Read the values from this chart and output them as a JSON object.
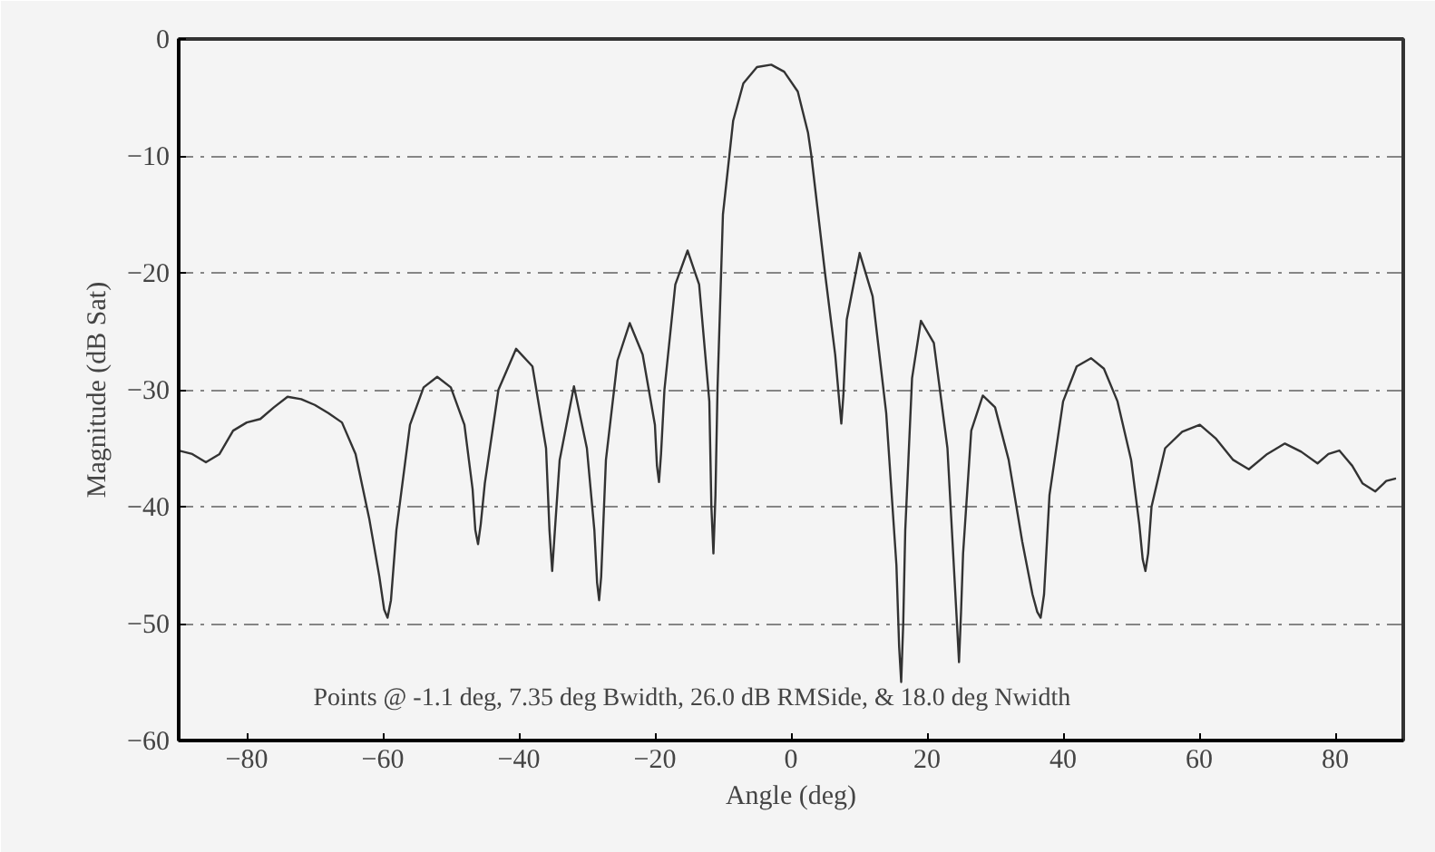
{
  "chart_data": {
    "type": "line",
    "xlabel": "Angle (deg)",
    "ylabel": "Magnitude (dB Sat)",
    "xlim": [
      -90,
      90
    ],
    "ylim": [
      -60,
      0
    ],
    "xticks": [
      -80,
      -60,
      -40,
      -20,
      0,
      20,
      40,
      60,
      80
    ],
    "yticks": [
      0,
      -10,
      -20,
      -30,
      -40,
      -50,
      -60
    ],
    "grid": "y",
    "marker": "none",
    "line_style": "solid",
    "annotations": [
      "Points @ -1.1 deg, 7.35 deg Bwidth, 26.0 dB RMSide, & 18.0 deg Nwidth"
    ],
    "series": [
      {
        "color": "#333333",
        "x": [
          -90,
          -88,
          -86,
          -84,
          -82,
          -80,
          -78,
          -76,
          -74,
          -72,
          -70,
          -68,
          -66,
          -64,
          -62,
          -60.5,
          -59.8,
          -59.3,
          -58.8,
          -58,
          -56,
          -54,
          -52,
          -50,
          -48,
          -46.8,
          -46.4,
          -46,
          -45.6,
          -45,
          -43,
          -40.4,
          -38,
          -36,
          -35.5,
          -35.1,
          -34.7,
          -34,
          -31.9,
          -30,
          -28.9,
          -28.5,
          -28.2,
          -27.9,
          -27.2,
          -25.5,
          -23.7,
          -21.8,
          -20,
          -19.7,
          -19.4,
          -19.1,
          -18.6,
          -17,
          -15.2,
          -13.5,
          -12,
          -11.7,
          -11.4,
          -11.1,
          -10.8,
          -10,
          -8.5,
          -7,
          -5,
          -2.9,
          -1,
          1,
          2.5,
          3,
          4,
          5,
          6.5,
          7.1,
          7.4,
          7.7,
          8.2,
          10.1,
          12,
          14,
          15.5,
          15.9,
          16.2,
          16.5,
          16.8,
          17.8,
          19.1,
          21,
          23,
          24.4,
          24.7,
          25,
          25.3,
          26.5,
          28.2,
          30,
          32,
          34,
          35.5,
          36.2,
          36.7,
          37.2,
          38,
          40,
          42,
          44.1,
          46,
          48,
          50,
          51.2,
          51.7,
          52.1,
          52.5,
          53,
          55,
          57.5,
          60.1,
          62.5,
          65,
          67.3,
          70,
          72.6,
          75,
          77.4,
          79,
          80.6,
          82.5,
          84,
          85.9,
          87.5,
          88.8
        ],
        "values": [
          -35.2,
          -35.5,
          -36.2,
          -35.5,
          -33.5,
          -32.8,
          -32.5,
          -31.5,
          -30.6,
          -30.8,
          -31.3,
          -32.0,
          -32.8,
          -35.5,
          -41,
          -46,
          -48.8,
          -49.5,
          -48,
          -42,
          -33,
          -29.8,
          -28.9,
          -29.8,
          -33,
          -38.5,
          -42,
          -43.2,
          -41.5,
          -38,
          -30,
          -26.5,
          -28,
          -35,
          -42,
          -45.5,
          -42,
          -36,
          -29.7,
          -35,
          -42,
          -46.5,
          -48,
          -46,
          -36,
          -27.5,
          -24.3,
          -27,
          -33,
          -36.5,
          -37.9,
          -35.5,
          -30,
          -21,
          -18.1,
          -21,
          -31,
          -40,
          -44,
          -39,
          -30,
          -15,
          -7,
          -3.8,
          -2.4,
          -2.2,
          -2.8,
          -4.5,
          -8,
          -10,
          -15,
          -20,
          -27,
          -31,
          -32.9,
          -30.5,
          -24,
          -18.3,
          -22,
          -32,
          -45,
          -52,
          -55,
          -50,
          -42,
          -29,
          -24.1,
          -26,
          -35,
          -50,
          -53.3,
          -49,
          -44,
          -33.5,
          -30.5,
          -31.5,
          -36,
          -43,
          -47.5,
          -49,
          -49.5,
          -47.5,
          -39,
          -31,
          -28,
          -27.3,
          -28.2,
          -31,
          -36,
          -41.5,
          -44.5,
          -45.5,
          -44,
          -40,
          -35,
          -33.6,
          -33.0,
          -34.2,
          -36,
          -36.8,
          -35.5,
          -34.6,
          -35.3,
          -36.3,
          -35.5,
          -35.2,
          -36.5,
          -38,
          -38.7,
          -37.8,
          -37.6
        ]
      }
    ]
  }
}
